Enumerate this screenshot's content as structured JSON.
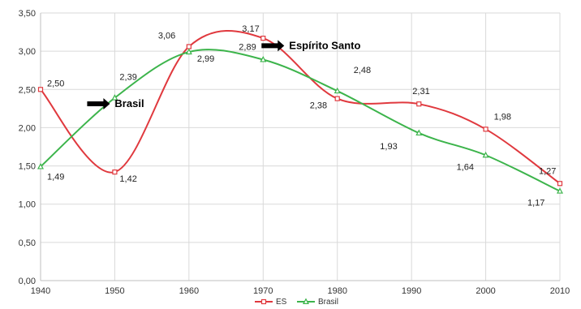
{
  "chart_data": {
    "type": "line",
    "x": [
      1940,
      1950,
      1960,
      1970,
      1980,
      1991,
      2000,
      2010
    ],
    "x_tick_labels": [
      "1940",
      "1950",
      "1960",
      "1970",
      "1980",
      "1990",
      "2000",
      "2010"
    ],
    "y_tick_labels": [
      "0,00",
      "0,50",
      "1,00",
      "1,50",
      "2,00",
      "2,50",
      "3,00",
      "3,50"
    ],
    "ylim": [
      0,
      3.5
    ],
    "grid": true,
    "legend": "bottom",
    "smooth": true,
    "series": [
      {
        "name": "ES",
        "color": "#e0393e",
        "marker": "square",
        "values": [
          2.5,
          1.42,
          3.06,
          3.17,
          2.38,
          2.31,
          1.98,
          1.27
        ],
        "labels": [
          "2,50",
          "1,42",
          "3,06",
          "3,17",
          "2,38",
          "2,31",
          "1,98",
          "1,27"
        ]
      },
      {
        "name": "Brasil",
        "color": "#3cb44b",
        "marker": "triangle",
        "values": [
          1.49,
          2.39,
          2.99,
          2.89,
          2.48,
          1.93,
          1.64,
          1.17
        ],
        "labels": [
          "1,49",
          "2,39",
          "2,99",
          "2,89",
          "2,48",
          "1,93",
          "1,64",
          "1,17"
        ]
      }
    ],
    "annotations": [
      {
        "text": "Espírito Santo",
        "x": 1973.5,
        "y": 3.03
      },
      {
        "text": "Brasil",
        "x": 1950,
        "y": 2.27
      }
    ]
  }
}
